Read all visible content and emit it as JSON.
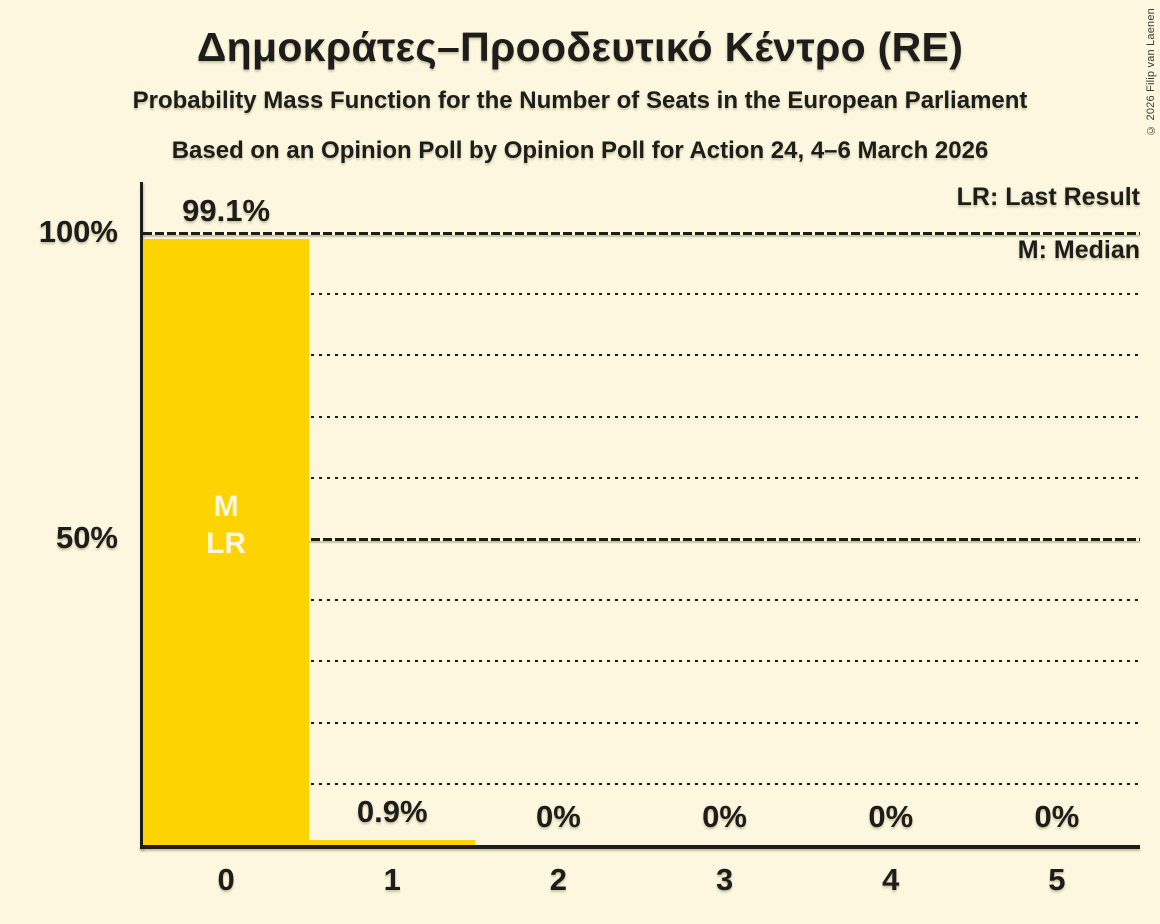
{
  "header": {
    "title": "Δημοκράτες–Προοδευτικό Κέντρο (RE)",
    "subtitle": "Probability Mass Function for the Number of Seats in the European Parliament",
    "poll_line": "Based on an Opinion Poll by Opinion Poll for Action 24, 4–6 March 2026"
  },
  "copyright": "© 2026 Filip van Laenen",
  "colors": {
    "background": "#FCF7DE",
    "bar": "#FDD301",
    "text": "#1D1D1B",
    "bar_inner_text": "#FCF7DE"
  },
  "chart_data": {
    "type": "bar",
    "title": "Δημοκράτες–Προοδευτικό Κέντρο (RE)",
    "xlabel": "",
    "ylabel": "",
    "categories": [
      "0",
      "1",
      "2",
      "3",
      "4",
      "5"
    ],
    "values": [
      99.1,
      0.9,
      0,
      0,
      0,
      0
    ],
    "value_labels": [
      "99.1%",
      "0.9%",
      "0%",
      "0%",
      "0%",
      "0%"
    ],
    "ylim": [
      0,
      100
    ],
    "y_ticks": [
      {
        "value": 100,
        "label": "100%"
      },
      {
        "value": 50,
        "label": "50%"
      }
    ],
    "gridlines": {
      "minor_values": [
        10,
        20,
        30,
        40,
        60,
        70,
        80,
        90
      ],
      "major_values": [
        50,
        100
      ]
    },
    "legend": [
      {
        "abbr": "LR",
        "label": "LR: Last Result"
      },
      {
        "abbr": "M",
        "label": "M: Median"
      }
    ],
    "annotations": {
      "median_label": "M",
      "last_result_label": "LR",
      "median_seats": 0,
      "last_result_seats": 0
    }
  }
}
